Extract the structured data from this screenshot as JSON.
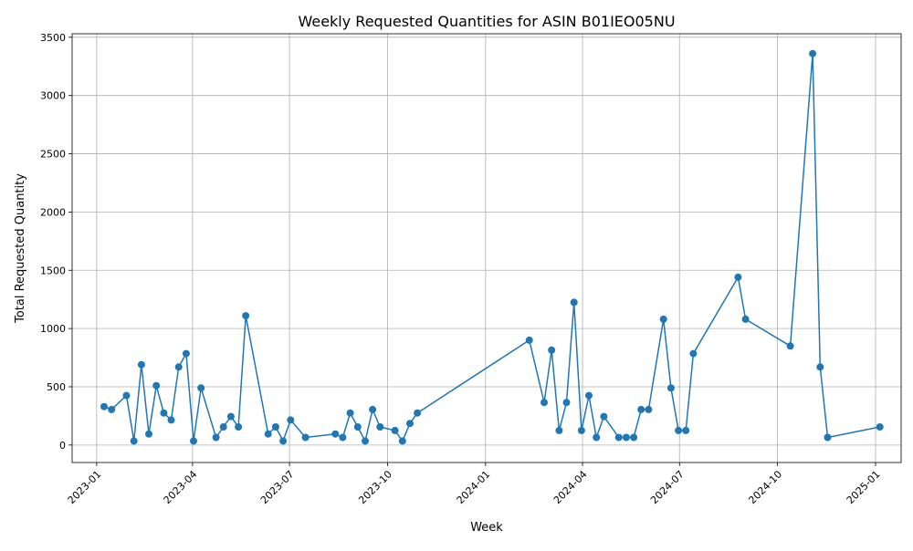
{
  "chart_data": {
    "type": "line",
    "title": "Weekly Requested Quantities for ASIN B01IEO05NU",
    "xlabel": "Week",
    "ylabel": "Total Requested Quantity",
    "x_tick_labels": [
      "2023-01",
      "2023-04",
      "2023-07",
      "2023-10",
      "2024-01",
      "2024-04",
      "2024-07",
      "2024-10",
      "2025-01"
    ],
    "y_tick_labels": [
      "0",
      "500",
      "1000",
      "1500",
      "2000",
      "2500",
      "3000",
      "3500"
    ],
    "xlim": [
      "2022-12-09",
      "2025-01-25"
    ],
    "ylim": [
      -150,
      3530
    ],
    "grid": true,
    "color": "#1f77b4",
    "series": [
      {
        "x": [
          "2023-01-08",
          "2023-01-15",
          "2023-01-29",
          "2023-02-05",
          "2023-02-12",
          "2023-02-19",
          "2023-02-26",
          "2023-03-05",
          "2023-03-12",
          "2023-03-19",
          "2023-03-26",
          "2023-04-02",
          "2023-04-09",
          "2023-04-23",
          "2023-04-30",
          "2023-05-07",
          "2023-05-14",
          "2023-05-21",
          "2023-06-11",
          "2023-06-18",
          "2023-06-25",
          "2023-07-02",
          "2023-07-16",
          "2023-08-13",
          "2023-08-20",
          "2023-08-27",
          "2023-09-03",
          "2023-09-10",
          "2023-09-17",
          "2023-09-24",
          "2023-10-08",
          "2023-10-15",
          "2023-10-22",
          "2023-10-29",
          "2024-02-11",
          "2024-02-25",
          "2024-03-03",
          "2024-03-10",
          "2024-03-17",
          "2024-03-24",
          "2024-03-31",
          "2024-04-07",
          "2024-04-14",
          "2024-04-21",
          "2024-05-05",
          "2024-05-12",
          "2024-05-19",
          "2024-05-26",
          "2024-06-02",
          "2024-06-16",
          "2024-06-23",
          "2024-06-30",
          "2024-07-07",
          "2024-07-14",
          "2024-08-25",
          "2024-09-01",
          "2024-10-13",
          "2024-11-03",
          "2024-11-10",
          "2024-11-17",
          "2025-01-05"
        ],
        "y": [
          330,
          305,
          425,
          35,
          690,
          95,
          510,
          275,
          215,
          670,
          785,
          35,
          490,
          65,
          155,
          245,
          155,
          1110,
          95,
          155,
          35,
          215,
          65,
          95,
          65,
          275,
          155,
          35,
          305,
          155,
          125,
          35,
          185,
          275,
          900,
          365,
          815,
          125,
          365,
          1225,
          125,
          425,
          65,
          245,
          65,
          65,
          65,
          305,
          305,
          1080,
          490,
          125,
          125,
          785,
          1440,
          1080,
          850,
          3360,
          670,
          65,
          155
        ]
      }
    ]
  }
}
